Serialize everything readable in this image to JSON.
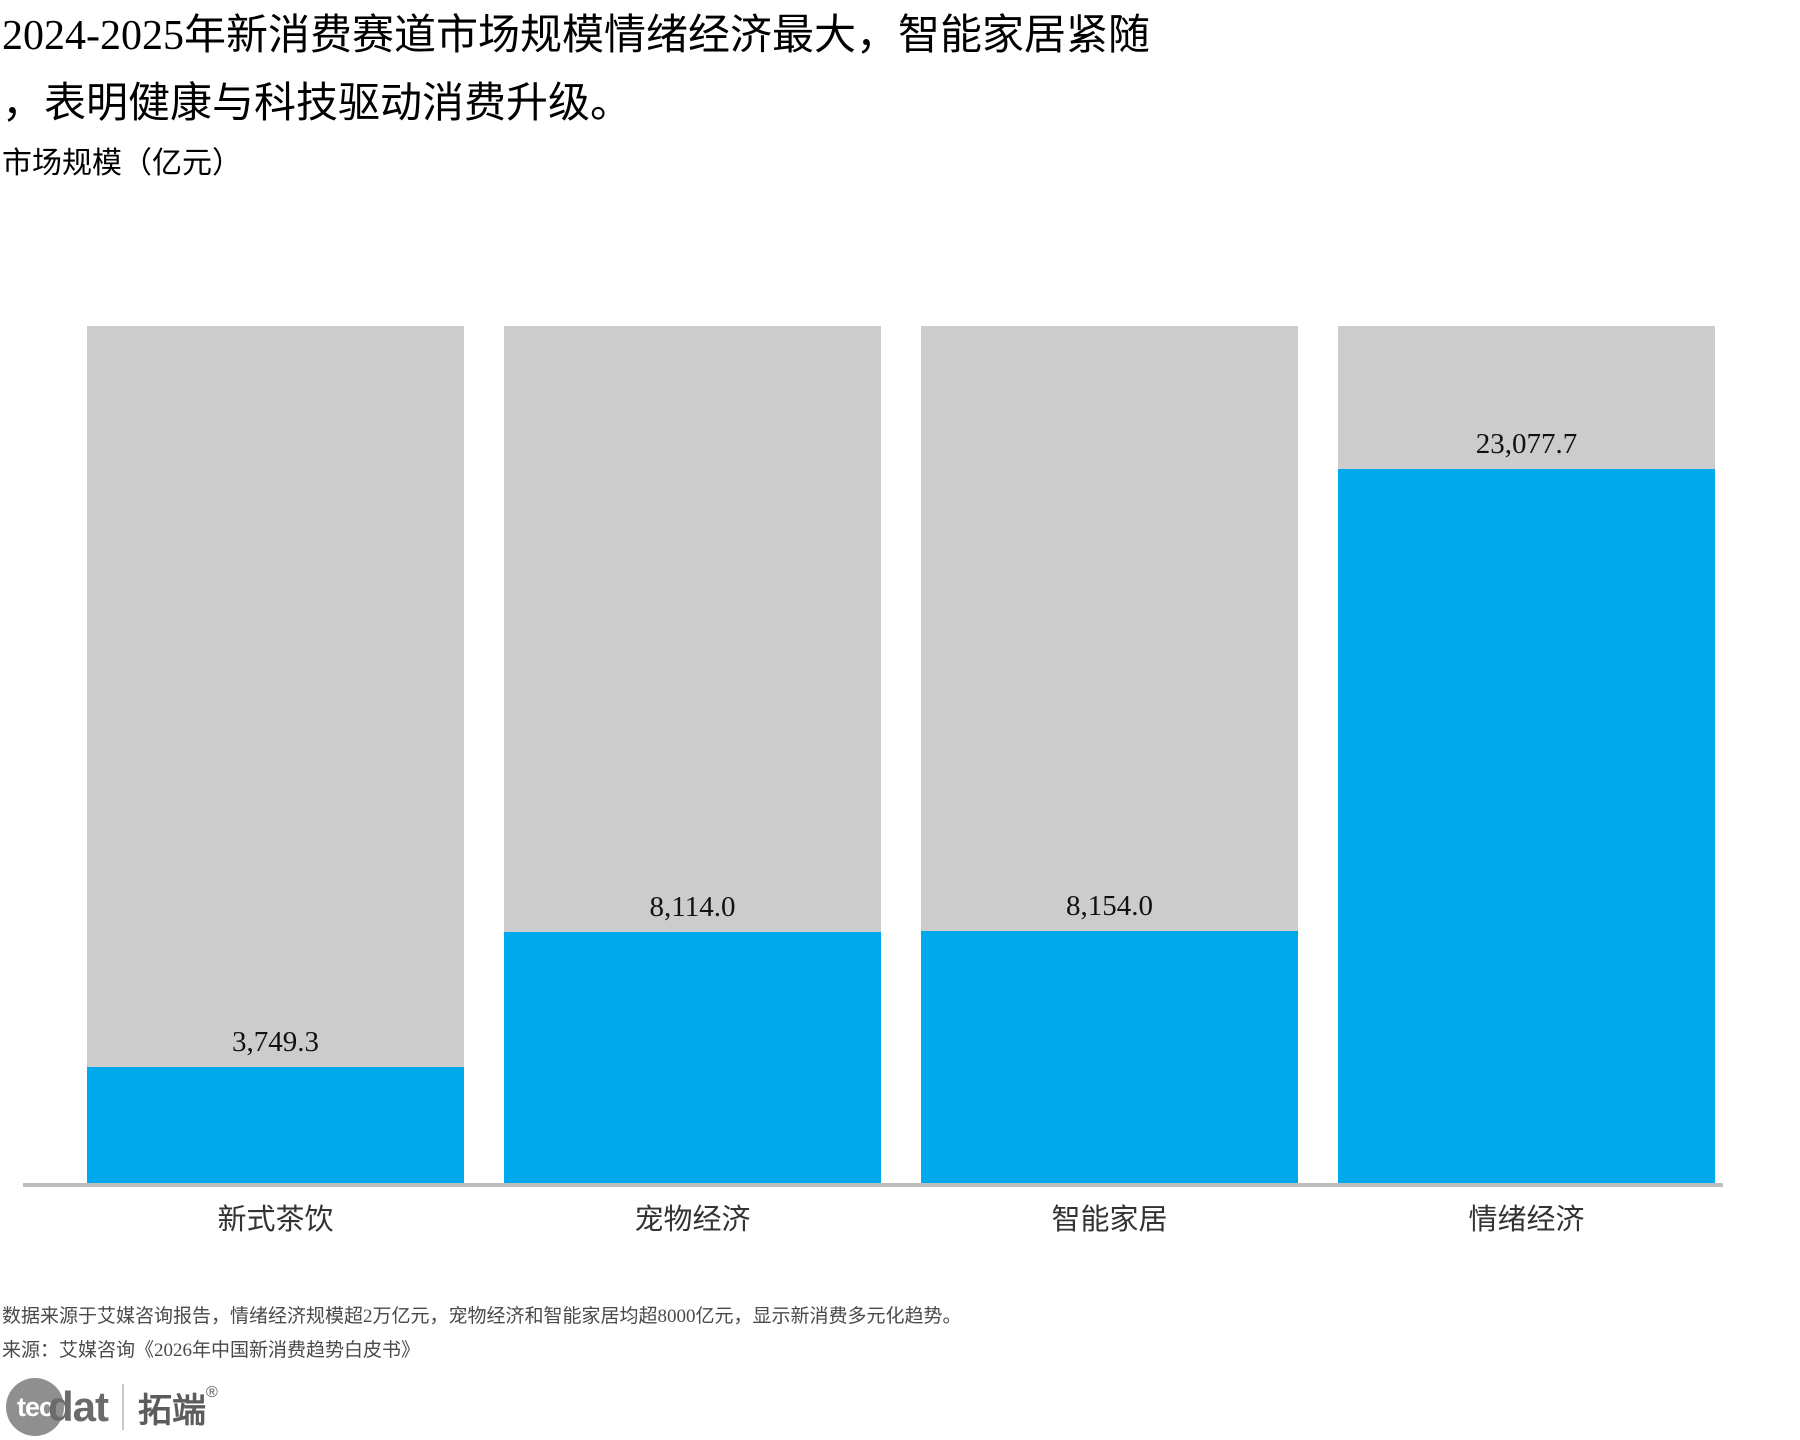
{
  "header": {
    "title_line1": "2024-2025年新消费赛道市场规模情绪经济最大，智能家居紧随",
    "title_line2": "，表明健康与科技驱动消费升级。",
    "subtitle": "市场规模（亿元）"
  },
  "chart_data": {
    "type": "bar",
    "title": "市场规模（亿元）",
    "categories": [
      "新式茶饮",
      "宠物经济",
      "智能家居",
      "情绪经济"
    ],
    "values": [
      3749.3,
      8114.0,
      8154.0,
      23077.7
    ],
    "value_labels": [
      "3,749.3",
      "8,114.0",
      "8,154.0",
      "23,077.7"
    ],
    "xlabel": "",
    "ylabel": "市场规模（亿元）",
    "ylim": [
      0,
      27693
    ],
    "grid": false,
    "legend": "none",
    "bar_color": "#00A8EC",
    "track_color": "#CCCCCC",
    "track_full_height": true
  },
  "footer": {
    "note": "数据来源于艾媒咨询报告，情绪经济规模超2万亿元，宠物经济和智能家居均超8000亿元，显示新消费多元化趋势。",
    "source": "来源：艾媒咨询《2026年中国新消费趋势白皮书》"
  },
  "logo": {
    "circle_text": "tec",
    "wordmark": "dat",
    "cjk_text": "拓端",
    "registered_mark": "®"
  },
  "colors": {
    "bar_blue": "#00A8EC",
    "bar_track_gray": "#CCCCCC",
    "axis_line": "#BDBDBD",
    "title_text": "#000000",
    "category_label": "#333333",
    "value_label": "#111111",
    "footer_text": "#4A4A4A",
    "logo_gray": "#8F8F8F"
  }
}
